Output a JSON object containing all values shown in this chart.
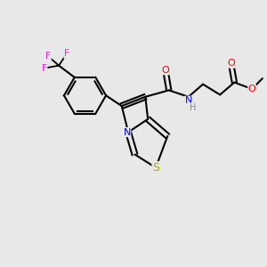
{
  "background_color": "#e8e8e8",
  "bond_color": "#000000",
  "atoms": {
    "S": {
      "color": "#aaaa00"
    },
    "N": {
      "color": "#0000ee"
    },
    "N2": {
      "color": "#0000cc"
    },
    "O": {
      "color": "#ff0000"
    },
    "F": {
      "color": "#ee22ee"
    },
    "H": {
      "color": "#888888"
    }
  },
  "figsize": [
    3.0,
    3.0
  ],
  "dpi": 100
}
